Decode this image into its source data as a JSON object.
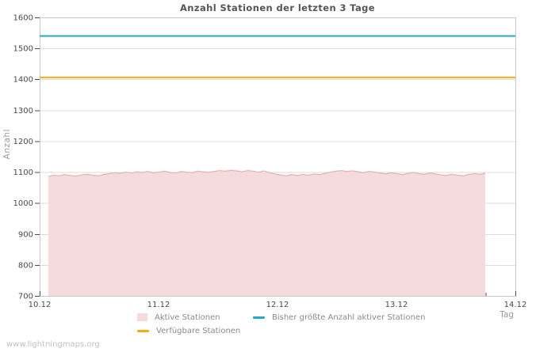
{
  "title": "Anzahl Stationen der letzten 3 Tage",
  "watermark": "www.lightningmaps.org",
  "colors": {
    "active_fill": "#f5dbdb",
    "active_stroke": "#e2b6b6",
    "max_line": "#2aa7c6",
    "available_line": "#f7ac16",
    "grid": "#dcdcdc",
    "plot_border": "#c9c9c9",
    "tick": "#4a4a4a",
    "tick_label": "#4a4a4a"
  },
  "chart_data": {
    "type": "area",
    "title": "Anzahl Stationen der letzten 3 Tage",
    "xlabel": "Tag",
    "ylabel": "Anzahl",
    "ylim": [
      700,
      1600
    ],
    "y_ticks": [
      700,
      800,
      900,
      1000,
      1100,
      1200,
      1300,
      1400,
      1500,
      1600
    ],
    "x_range_days": [
      0,
      4
    ],
    "x_ticks": [
      {
        "day": 0,
        "label": "10.12"
      },
      {
        "day": 1,
        "label": "11.12"
      },
      {
        "day": 2,
        "label": "12.12"
      },
      {
        "day": 3,
        "label": "13.12"
      },
      {
        "day": 4,
        "label": "14.12"
      }
    ],
    "x_minor_tick_step_days": 0.25,
    "grid": "horizontal-only",
    "legend_position": "bottom",
    "series": [
      {
        "name": "Aktive Stationen",
        "type": "area",
        "x_start_day": 0.073,
        "x_end_day": 3.747,
        "values": [
          1086,
          1090,
          1088,
          1092,
          1089,
          1087,
          1091,
          1093,
          1090,
          1088,
          1092,
          1095,
          1098,
          1096,
          1100,
          1097,
          1101,
          1099,
          1102,
          1098,
          1100,
          1103,
          1099,
          1097,
          1102,
          1100,
          1098,
          1103,
          1101,
          1099,
          1102,
          1105,
          1103,
          1106,
          1104,
          1101,
          1105,
          1103,
          1100,
          1104,
          1098,
          1094,
          1091,
          1088,
          1092,
          1089,
          1093,
          1090,
          1094,
          1092,
          1096,
          1100,
          1103,
          1105,
          1102,
          1104,
          1101,
          1098,
          1102,
          1100,
          1097,
          1094,
          1098,
          1095,
          1092,
          1096,
          1099,
          1095,
          1093,
          1097,
          1094,
          1091,
          1089,
          1093,
          1090,
          1088,
          1092,
          1095,
          1093,
          1096
        ]
      },
      {
        "name": "Bisher größte Anzahl aktiver Stationen",
        "type": "line",
        "value": 1540
      },
      {
        "name": "Verfügbare Stationen",
        "type": "line",
        "value": 1406
      }
    ]
  }
}
